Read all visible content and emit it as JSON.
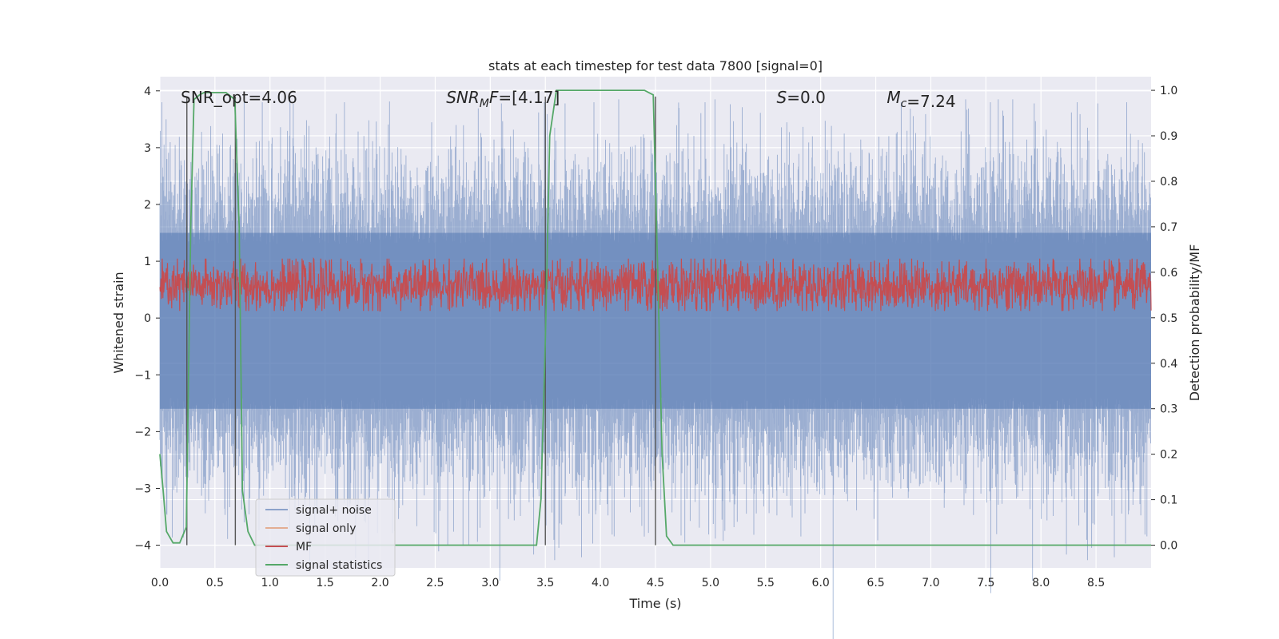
{
  "chart_data": {
    "type": "line",
    "title": "stats at each timestep for test data 7800 [signal=0]",
    "xlabel": "Time (s)",
    "ylabel_left": "Whitened strain",
    "ylabel_right": "Detection probability/MF",
    "xlim": [
      0.0,
      9.0
    ],
    "ylim_left": [
      -4.4,
      4.25
    ],
    "ylim_right": [
      -0.05,
      1.03
    ],
    "xticks": [
      0.0,
      0.5,
      1.0,
      1.5,
      2.0,
      2.5,
      3.0,
      3.5,
      4.0,
      4.5,
      5.0,
      5.5,
      6.0,
      6.5,
      7.0,
      7.5,
      8.0,
      8.5
    ],
    "xtick_labels": [
      "0.0",
      "0.5",
      "1.0",
      "1.5",
      "2.0",
      "2.5",
      "3.0",
      "3.5",
      "4.0",
      "4.5",
      "5.0",
      "5.5",
      "6.0",
      "6.5",
      "7.0",
      "7.5",
      "8.0",
      "8.5"
    ],
    "yticks_left": [
      -4,
      -3,
      -2,
      -1,
      0,
      1,
      2,
      3,
      4
    ],
    "ytick_labels_left": [
      "−4",
      "−3",
      "−2",
      "−1",
      "0",
      "1",
      "2",
      "3",
      "4"
    ],
    "yticks_right": [
      0.0,
      0.1,
      0.2,
      0.3,
      0.4,
      0.5,
      0.6,
      0.7,
      0.8,
      0.9,
      1.0
    ],
    "ytick_labels_right": [
      "0.0",
      "0.1",
      "0.2",
      "0.3",
      "0.4",
      "0.5",
      "0.6",
      "0.7",
      "0.8",
      "0.9",
      "1.0"
    ],
    "grid": true,
    "background": "#eaeaf2",
    "legend_position": "lower-left",
    "annotations": [
      {
        "text": "SNR_opt=4.06",
        "x": 0.19,
        "y": 3.9
      },
      {
        "text": "SNR_MF=[4.17]",
        "x": 2.6,
        "y": 3.9
      },
      {
        "text": "S=0.0",
        "x": 5.6,
        "y": 3.9
      },
      {
        "text": "M_c=7.24",
        "x": 6.6,
        "y": 3.9
      }
    ],
    "series": [
      {
        "name": "signal+ noise",
        "axis": "left",
        "color": "#4c72b0",
        "alpha": 0.5,
        "description": "noisy whitened strain, approx. N(0,1), range about -4 to 3.8",
        "envelope_samples": 2400
      },
      {
        "name": "signal only",
        "axis": "left",
        "color": "#dd8452",
        "values": []
      },
      {
        "name": "MF",
        "axis": "right",
        "color": "#c44e52",
        "range": [
          0.52,
          0.62
        ]
      },
      {
        "name": "signal statistics",
        "axis": "right",
        "color": "#55a868",
        "x": [
          0.0,
          0.03,
          0.06,
          0.12,
          0.18,
          0.24,
          0.28,
          0.31,
          0.36,
          0.4,
          0.5,
          0.6,
          0.68,
          0.72,
          0.75,
          0.8,
          0.86,
          1.0,
          2.0,
          3.0,
          3.3,
          3.42,
          3.46,
          3.5,
          3.54,
          3.6,
          4.0,
          4.4,
          4.48,
          4.52,
          4.56,
          4.6,
          4.66,
          4.8,
          6.0,
          7.0,
          8.0,
          9.0
        ],
        "y": [
          0.2,
          0.12,
          0.03,
          0.005,
          0.005,
          0.04,
          0.7,
          0.98,
          0.99,
          0.995,
          0.995,
          0.995,
          0.98,
          0.7,
          0.12,
          0.03,
          0.0,
          0.0,
          0.0,
          0.0,
          0.0,
          0.0,
          0.1,
          0.45,
          0.9,
          1.0,
          1.0,
          1.0,
          0.99,
          0.6,
          0.2,
          0.02,
          0.0,
          0.0,
          0.0,
          0.0,
          0.0,
          0.0
        ]
      }
    ],
    "vlines": [
      {
        "x": 0.245,
        "y": [
          -4.0,
          3.9
        ]
      },
      {
        "x": 0.685,
        "y": [
          -4.0,
          3.9
        ]
      },
      {
        "x": 3.5,
        "y": [
          -4.0,
          3.9
        ]
      },
      {
        "x": 4.5,
        "y": [
          -4.0,
          3.9
        ]
      }
    ]
  },
  "legend": {
    "items": [
      {
        "label": "signal+ noise",
        "color": "#4c72b0"
      },
      {
        "label": "signal only",
        "color": "#dd8452"
      },
      {
        "label": "MF",
        "color": "#c44e52"
      },
      {
        "label": "signal statistics",
        "color": "#55a868"
      }
    ]
  }
}
